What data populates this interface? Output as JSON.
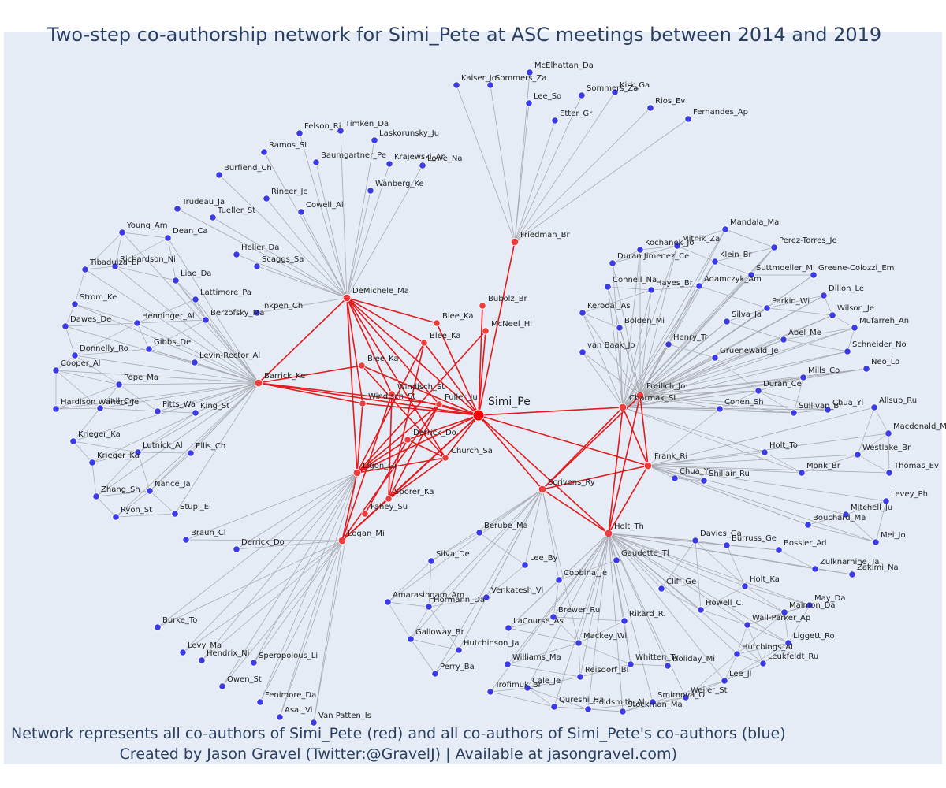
{
  "title": "Two-step co-authorship network for Simi_Pete at ASC meetings between 2014 and 2019",
  "caption": {
    "line1": "Network represents all co-authors of Simi_Pete (red) and all co-authors of Simi_Pete's co-authors (blue)",
    "line2": "Created by Jason Gravel (Twitter:@GravelJ) | Available at jasongravel.com)"
  },
  "colors": {
    "focus": "#ff0000",
    "coauthor": "#ef3b3b",
    "second": "#3a3ae6",
    "red_edge": "#e41a1c",
    "gray_edge": "#a8aab0"
  },
  "focus": "Simi_Pe",
  "hubs": [
    "DeMichele_Ma",
    "Barrick_Ke",
    "Friedman_Br",
    "Charmak_St",
    "Frank_Ri",
    "Holt_Th",
    "Scrivens_Ry",
    "Logan_Mi",
    "Ligon_Gi"
  ],
  "red_nodes": [
    "Simi_Pe",
    "DeMichele_Ma",
    "Barrick_Ke",
    "Friedman_Br",
    "Bubolz_Br",
    "McNeel_Hi",
    "Blee_Ka",
    "Blee_Ka",
    "Blee_Ka",
    "Windisch_St",
    "Windisch_St",
    "Fuller_Ju",
    "Derrick_Do",
    "Church_Sa",
    "Ligon_Gi",
    "Sporer_Ka",
    "Fahey_Su",
    "Logan_Mi",
    "Scrivens_Ry",
    "Charmak_St",
    "Freilich_Jo",
    "Frank_Ri",
    "Holt_Th"
  ],
  "clusters": {
    "top": [
      "McElhattan_Da",
      "Kaiser_Jo",
      "Sommers_Za",
      "Lee_So",
      "Sommers_Za",
      "Kirk_Ga",
      "Etter_Gr",
      "Rios_Ev",
      "Fernandes_Ap"
    ],
    "demichele": [
      "Felson_Ri",
      "Timken_Da",
      "Laskorunsky_Ju",
      "Ramos_St",
      "Baumgartner_Pe",
      "Krajewski_An",
      "Lowe_Na",
      "Burfiend_Ch",
      "Wanberg_Ke",
      "Rineer_Je",
      "Cowell_Al",
      "Trudeau_Ja",
      "Tueller_St",
      "Heller_Da",
      "Scaggs_Sa",
      "Inkpen_Ch"
    ],
    "barrick": [
      "Young_Am",
      "Dean_Ca",
      "Richardson_Ni",
      "Tibaduiza_El",
      "Liao_Da",
      "Lattimore_Pa",
      "Strom_Ke",
      "Berzofsky_Ma",
      "Henninger_Al",
      "Dawes_De",
      "Gibbs_De",
      "Donnelly_Ro",
      "Levin-Rector_Al",
      "Cooper_Al",
      "Pope_Ma",
      "Hardison Walters_Je",
      "Hall_Ce",
      "Pitts_Wa",
      "King_St",
      "Krieger_Ka",
      "Krieger_Ka",
      "Lutnick_Al",
      "Ellis_Ch",
      "Zhang_Sh",
      "Nance_Ja",
      "Ryon_St",
      "Stupi_El"
    ],
    "logan": [
      "Braun_Cl",
      "Derrick_Do",
      "Burke_To",
      "Levy_Ma",
      "Hendrix_Ni",
      "Speropolous_Li",
      "Owen_St",
      "Fenimore_Da",
      "Asal_Vi",
      "Van Patten_Is"
    ],
    "scrivens": [
      "Berube_Ma",
      "Silva_De",
      "Lee_By",
      "Amarasingam_Am",
      "Hormann_Da",
      "Venkatesh_Vi",
      "Galloway_Br",
      "Hutchinson_Ja",
      "Perry_Ba"
    ],
    "holt": [
      "Gaudette_Tl",
      "Cobbina_Je",
      "Brewer_Ru",
      "LaCourse_As",
      "Rikard_R.",
      "Mackey_Wi",
      "Williams_Ma",
      "Whitten_Ty",
      "Reisdorf_Bl",
      "Holiday_Mi",
      "Cale_Je",
      "Trofimuk_Br",
      "Qureshi_Ha",
      "Goldsmith_Al",
      "Stockman_Ma",
      "Smirnova_Ol",
      "Weiler_St",
      "Lee_Jl",
      "Leukfeldt_Ru",
      "Hutchings_Al",
      "Liggett_Ro",
      "Wall-Parker_Ap",
      "Maimon_Da",
      "May_Da",
      "Howell_C.",
      "Holt_Ka",
      "Cliff_Ge",
      "Davies_Ga",
      "Burruss_Ge",
      "Bossler_Ad",
      "Zulknarnine_Ta",
      "Zakimi_Na"
    ],
    "charmak": [
      "Mandala_Ma",
      "Kochanek_Jo",
      "Mitnik_Za",
      "Perez-Torres_Je",
      "Duran Jimenez_Ce",
      "Klein_Br",
      "Suttmoeller_Mi",
      "Greene-Colozzi_Em",
      "Connell_Na",
      "Hayes_Br",
      "Adamczyk_Am",
      "Dillon_Le",
      "Kerodal_As",
      "Parkin_Wi",
      "Wilson_Je",
      "Bolden_Mi",
      "Silva_Ja",
      "Mufarreh_An",
      "Abel_Me",
      "Schneider_No",
      "van Baak_Jo",
      "Henry_Tr",
      "Gruenewald_Je",
      "Neo_Lo",
      "Mills_Co",
      "Duran_Ce",
      "Cohen_Sh",
      "Sullivan_Br",
      "Chua_Yi"
    ],
    "frank": [
      "Allsup_Ru",
      "Macdonald_M",
      "Westlake_Br",
      "Holt_To",
      "Thomas_Ev",
      "Monk_Br",
      "Chua_Yi",
      "Shillair_Ru",
      "Levey_Ph",
      "Mitchell_Ju",
      "Bouchard_Ma",
      "Mei_Jo"
    ]
  }
}
